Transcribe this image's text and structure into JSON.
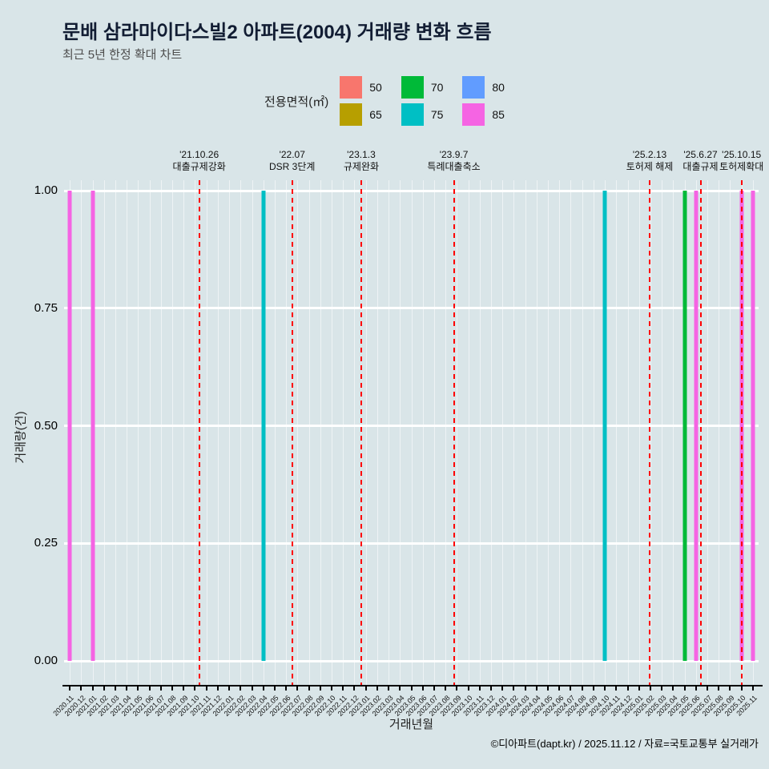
{
  "header": {
    "title": "문배 삼라마이다스빌2 아파트(2004) 거래량 변화 흐름",
    "subtitle": "최근 5년 한정 확대 차트"
  },
  "legend": {
    "title": "전용면적(㎡)",
    "items": [
      {
        "label": "50",
        "color": "#F8766D"
      },
      {
        "label": "65",
        "color": "#B79F00"
      },
      {
        "label": "70",
        "color": "#00BA38"
      },
      {
        "label": "75",
        "color": "#00BFC4"
      },
      {
        "label": "80",
        "color": "#619CFF"
      },
      {
        "label": "85",
        "color": "#F564E3"
      }
    ]
  },
  "chart_data": {
    "type": "bar",
    "title": "문배 삼라마이다스빌2 아파트(2004) 거래량 변화 흐름",
    "subtitle": "최근 5년 한정 확대 차트",
    "xlabel": "거래년월",
    "ylabel": "거래량(건)",
    "ylim": [
      0,
      1
    ],
    "yticks": [
      "0.00",
      "0.25",
      "0.50",
      "0.75",
      "1.00"
    ],
    "grid": "white major gridlines on light blue-gray background",
    "legend_position": "top",
    "categories": [
      "2020.11",
      "2020.12",
      "2021.01",
      "2021.02",
      "2021.03",
      "2021.04",
      "2021.05",
      "2021.06",
      "2021.07",
      "2021.08",
      "2021.09",
      "2021.10",
      "2021.11",
      "2021.12",
      "2022.01",
      "2022.02",
      "2022.03",
      "2022.04",
      "2022.05",
      "2022.06",
      "2022.07",
      "2022.08",
      "2022.09",
      "2022.10",
      "2022.11",
      "2022.12",
      "2023.01",
      "2023.02",
      "2023.03",
      "2023.04",
      "2023.05",
      "2023.06",
      "2023.07",
      "2023.08",
      "2023.09",
      "2023.10",
      "2023.11",
      "2023.12",
      "2024.01",
      "2024.02",
      "2024.03",
      "2024.04",
      "2024.05",
      "2024.06",
      "2024.07",
      "2024.08",
      "2024.09",
      "2024.10",
      "2024.11",
      "2024.12",
      "2025.01",
      "2025.02",
      "2025.03",
      "2025.04",
      "2025.05",
      "2025.06",
      "2025.07",
      "2025.08",
      "2025.09",
      "2025.10",
      "2025.11"
    ],
    "bars": [
      {
        "month": "2020.11",
        "area": "85",
        "value": 1
      },
      {
        "month": "2021.01",
        "area": "85",
        "value": 1
      },
      {
        "month": "2022.04",
        "area": "75",
        "value": 1
      },
      {
        "month": "2024.10",
        "area": "75",
        "value": 1
      },
      {
        "month": "2025.05",
        "area": "70",
        "value": 1
      },
      {
        "month": "2025.06",
        "area": "85",
        "value": 1
      },
      {
        "month": "2025.10",
        "area": "85",
        "value": 1
      },
      {
        "month": "2025.11",
        "area": "85",
        "value": 1
      }
    ],
    "annotations": [
      {
        "date": "'21.10.26",
        "label": "대출규제강화"
      },
      {
        "date": "'22.07",
        "label": "DSR 3단계"
      },
      {
        "date": "'23.1.3",
        "label": "규제완화"
      },
      {
        "date": "'23.9.7",
        "label": "특례대출축소"
      },
      {
        "date": "'25.2.13",
        "label": "토허제 해제"
      },
      {
        "date": "'25.6.27",
        "label": "대출규제"
      },
      {
        "date": "'25.10.15",
        "label": "토허제확대"
      }
    ],
    "annotation_line_color": "#ff0000",
    "background_color": "#d9e5e8"
  },
  "footer": {
    "credit": "©디아파트(dapt.kr) / 2025.11.12 / 자료=국토교통부 실거래가"
  }
}
